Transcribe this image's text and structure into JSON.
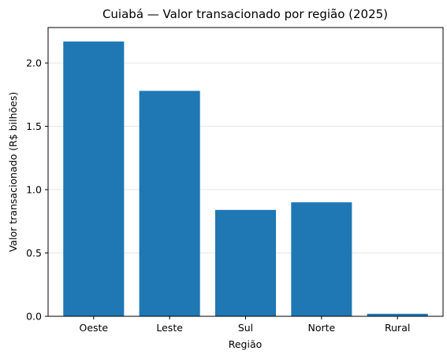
{
  "chart_data": {
    "type": "bar",
    "title": "Cuiabá — Valor transacionado por região (2025)",
    "xlabel": "Região",
    "ylabel": "Valor transacionado (R$ bilhões)",
    "categories": [
      "Oeste",
      "Leste",
      "Sul",
      "Norte",
      "Rural"
    ],
    "values": [
      2.17,
      1.78,
      0.84,
      0.9,
      0.02
    ],
    "ylim": [
      0,
      2.28
    ],
    "yticks": [
      {
        "value": 0.0,
        "label": "0.0"
      },
      {
        "value": 0.5,
        "label": "0.5"
      },
      {
        "value": 1.0,
        "label": "1.0"
      },
      {
        "value": 1.5,
        "label": "1.5"
      },
      {
        "value": 2.0,
        "label": "2.0"
      }
    ],
    "grid": "horizontal",
    "bar_color": "#1f77b4",
    "grid_color": "#e6e6e6"
  }
}
